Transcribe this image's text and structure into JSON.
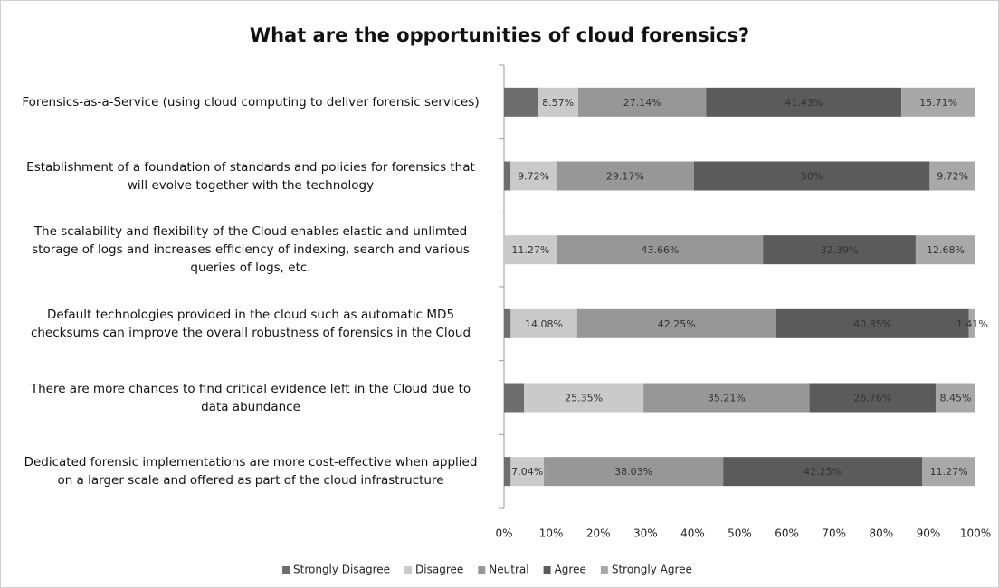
{
  "chart_data": {
    "type": "stacked_barh",
    "title": "What are the opportunities of cloud forensics?",
    "categories": [
      "Forensics-as-a-Service (using cloud computing to deliver forensic services)",
      "Establishment of a foundation of standards and policies for forensics that will evolve together with the technology",
      "The scalability and flexibility of the Cloud enables elastic and unlimted storage of logs and increases efficiency of indexing, search and various queries of logs, etc.",
      "Default technologies provided in the cloud such as automatic MD5 checksums can improve the overall robustness of forensics in the Cloud",
      "There are more chances to find critical evidence left in the Cloud due to data abundance",
      "Dedicated forensic implementations are more cost-effective when applied on a larger scale and offered as part of the cloud infrastructure"
    ],
    "series": [
      {
        "name": "Strongly Disagree",
        "color": "#6e6e6e",
        "values": [
          7.15,
          1.39,
          0,
          1.41,
          4.23,
          1.41
        ],
        "value_labels": [
          null,
          null,
          null,
          null,
          null,
          null
        ]
      },
      {
        "name": "Disagree",
        "color": "#cacaca",
        "values": [
          8.57,
          9.72,
          11.27,
          14.08,
          25.35,
          7.04
        ],
        "value_labels": [
          "8.57%",
          "9.72%",
          "11.27%",
          "14.08%",
          "25.35%",
          "7.04%"
        ]
      },
      {
        "name": "Neutral",
        "color": "#979797",
        "values": [
          27.14,
          29.17,
          43.66,
          42.25,
          35.21,
          38.03
        ],
        "value_labels": [
          "27.14%",
          "29.17%",
          "43.66%",
          "42.25%",
          "35.21%",
          "38.03%"
        ]
      },
      {
        "name": "Agree",
        "color": "#5b5b5b",
        "values": [
          41.43,
          50,
          32.39,
          40.85,
          26.76,
          42.25
        ],
        "value_labels": [
          "41.43%",
          "50%",
          "32.39%",
          "40.85%",
          "26.76%",
          "42.25%"
        ]
      },
      {
        "name": "Strongly Agree",
        "color": "#a8a8a8",
        "values": [
          15.71,
          9.72,
          12.68,
          1.41,
          8.45,
          11.27
        ],
        "value_labels": [
          "15.71%",
          "9.72%",
          "12.68%",
          "1.41%",
          "8.45%",
          "11.27%"
        ]
      }
    ],
    "xlim": [
      0,
      100
    ],
    "xticks": [
      {
        "value": 0,
        "label": "0%"
      },
      {
        "value": 10,
        "label": "10%"
      },
      {
        "value": 20,
        "label": "20%"
      },
      {
        "value": 30,
        "label": "30%"
      },
      {
        "value": 40,
        "label": "40%"
      },
      {
        "value": 50,
        "label": "50%"
      },
      {
        "value": 60,
        "label": "60%"
      },
      {
        "value": 70,
        "label": "70%"
      },
      {
        "value": 80,
        "label": "80%"
      },
      {
        "value": 90,
        "label": "90%"
      },
      {
        "value": 100,
        "label": "100%"
      }
    ],
    "legend": "bottom",
    "grid": false
  }
}
